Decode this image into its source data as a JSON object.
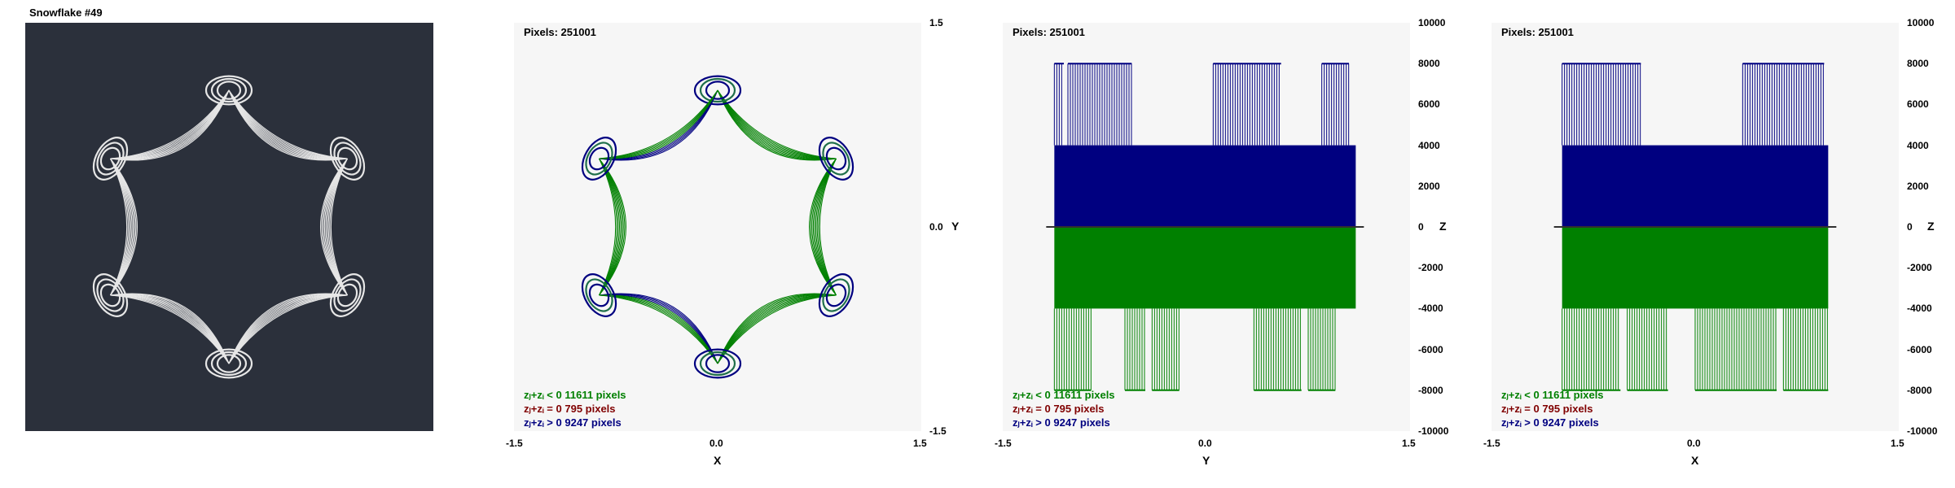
{
  "window_title": "Snowflake #49",
  "colors": {
    "background": "#2b303b",
    "panel": "#f6f6f6",
    "neg": "#008000",
    "zero": "#800000",
    "pos": "#000080",
    "mid": "#1f6f4a"
  },
  "chart_data": [
    {
      "type": "image",
      "title": "Snowflake #49"
    },
    {
      "type": "scatter",
      "view": "xy",
      "pixels_label": "Pixels: 251001",
      "xlabel": "X",
      "ylabel": "Y",
      "xlim": [
        -1.5,
        1.5
      ],
      "ylim": [
        -1.5,
        1.5
      ],
      "xticks": [
        "-1.5",
        "0.0",
        "1.5"
      ],
      "yticks": [
        "1.5",
        "0.0",
        "-1.5"
      ],
      "legend": [
        "zⱼ+zᵢ < 0  11611 pixels",
        "zⱼ+zᵢ = 0  795 pixels",
        "zⱼ+zᵢ > 0  9247 pixels"
      ],
      "series": [
        {
          "name": "zⱼ+zᵢ < 0",
          "count": 11611
        },
        {
          "name": "zⱼ+zᵢ = 0",
          "count": 795
        },
        {
          "name": "zⱼ+zᵢ > 0",
          "count": 9247
        }
      ]
    },
    {
      "type": "bar",
      "view": "yz",
      "pixels_label": "Pixels: 251001",
      "xlabel": "Y",
      "ylabel": "Z",
      "xlim": [
        -1.5,
        1.5
      ],
      "ylim": [
        -10000,
        10000
      ],
      "xticks": [
        "-1.5",
        "0.0",
        "1.5"
      ],
      "yticks": [
        "10000",
        "8000",
        "6000",
        "4000",
        "2000",
        "0",
        "-2000",
        "-4000",
        "-6000",
        "-8000",
        "-10000"
      ],
      "legend": [
        "zⱼ+zᵢ < 0  11611 pixels",
        "zⱼ+zᵢ = 0  795 pixels",
        "zⱼ+zᵢ > 0  9247 pixels"
      ],
      "bands": {
        "pos_range": [
          -1.12,
          1.1
        ],
        "pos_value": 4000,
        "neg_range": [
          -1.12,
          1.1
        ],
        "neg_value": -4000,
        "pos_spikes": [
          [
            -1.12,
            -1.05
          ],
          [
            -1.02,
            -0.55
          ],
          [
            0.05,
            0.55
          ],
          [
            0.85,
            1.05
          ]
        ],
        "neg_spikes": [
          [
            -1.12,
            -0.85
          ],
          [
            -0.6,
            -0.45
          ],
          [
            -0.4,
            -0.2
          ],
          [
            0.35,
            0.7
          ],
          [
            0.75,
            0.95
          ]
        ],
        "spike_max": 8000
      }
    },
    {
      "type": "bar",
      "view": "xz",
      "pixels_label": "Pixels: 251001",
      "xlabel": "X",
      "ylabel": "Z",
      "xlim": [
        -1.5,
        1.5
      ],
      "ylim": [
        -10000,
        10000
      ],
      "xticks": [
        "-1.5",
        "0.0",
        "1.5"
      ],
      "yticks": [
        "10000",
        "8000",
        "6000",
        "4000",
        "2000",
        "0",
        "-2000",
        "-4000",
        "-6000",
        "-8000",
        "-10000"
      ],
      "legend": [
        "zⱼ+zᵢ < 0  11611 pixels",
        "zⱼ+zᵢ = 0  795 pixels",
        "zⱼ+zᵢ > 0  9247 pixels"
      ],
      "bands": {
        "pos_range": [
          -0.98,
          0.98
        ],
        "pos_value": 4000,
        "neg_range": [
          -0.98,
          0.98
        ],
        "neg_value": -4000,
        "pos_spikes": [
          [
            -0.98,
            -0.4
          ],
          [
            0.35,
            0.95
          ]
        ],
        "neg_spikes": [
          [
            -0.98,
            -0.55
          ],
          [
            -0.5,
            -0.2
          ],
          [
            0.0,
            0.6
          ],
          [
            0.65,
            0.98
          ]
        ],
        "spike_max": 8000
      }
    }
  ]
}
